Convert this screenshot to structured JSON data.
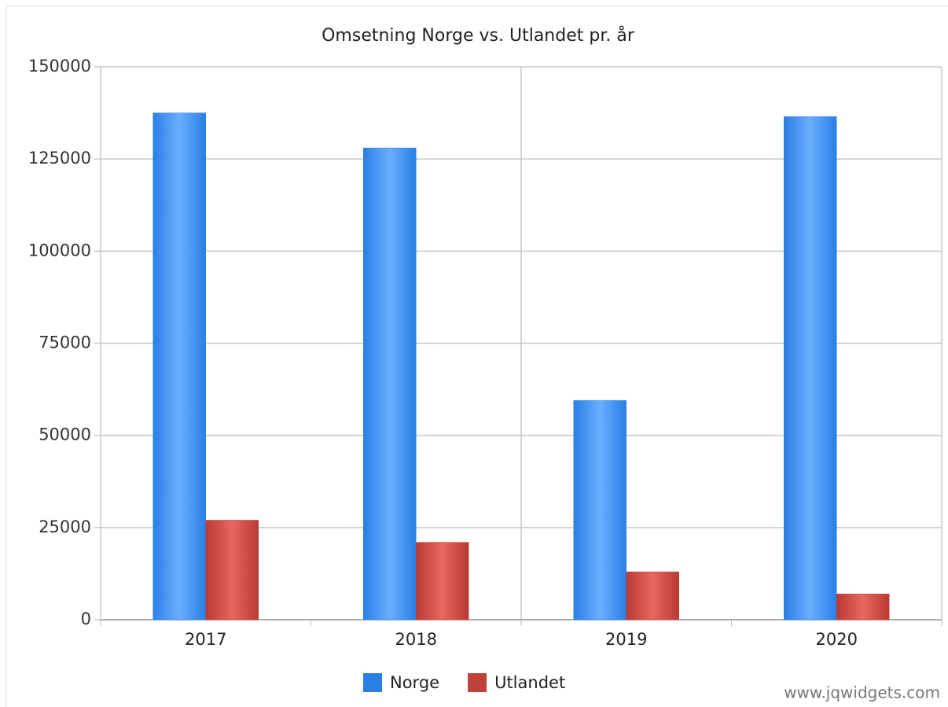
{
  "chart_data": {
    "type": "bar",
    "title": "Omsetning Norge vs. Utlandet pr. år",
    "categories": [
      "2017",
      "2018",
      "2019",
      "2020"
    ],
    "series": [
      {
        "name": "Norge",
        "color": "#2a7fe6",
        "values": [
          137500,
          128000,
          59500,
          136500
        ]
      },
      {
        "name": "Utlandet",
        "color": "#c0403a",
        "values": [
          27000,
          21000,
          13000,
          7000
        ]
      }
    ],
    "ylim": [
      0,
      150000
    ],
    "yticks": [
      0,
      25000,
      50000,
      75000,
      100000,
      125000,
      150000
    ],
    "grid": true,
    "legend": "bottom",
    "credit": "www.jqwidgets.com"
  }
}
